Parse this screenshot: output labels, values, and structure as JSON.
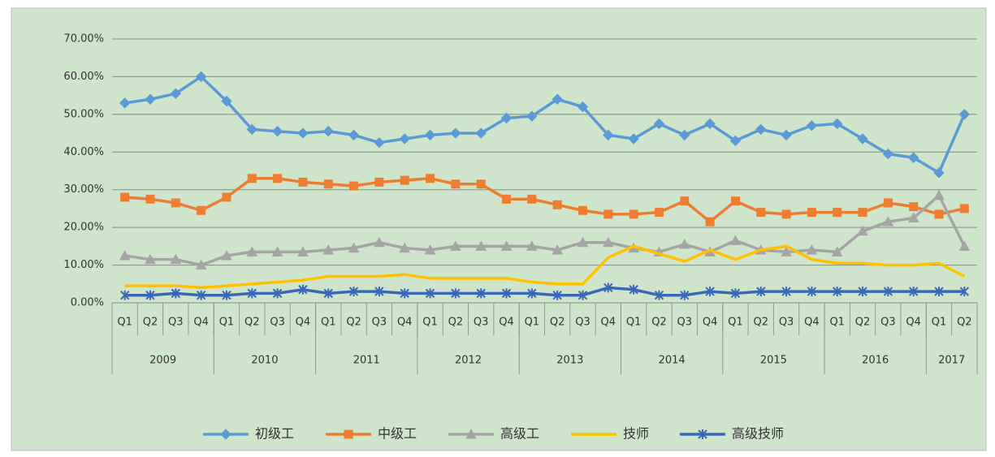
{
  "chart_data": {
    "type": "line",
    "groups": [
      {
        "label": "2009",
        "quarters": [
          "Q1",
          "Q2",
          "Q3",
          "Q4"
        ]
      },
      {
        "label": "2010",
        "quarters": [
          "Q1",
          "Q2",
          "Q3",
          "Q4"
        ]
      },
      {
        "label": "2011",
        "quarters": [
          "Q1",
          "Q2",
          "Q3",
          "Q4"
        ]
      },
      {
        "label": "2012",
        "quarters": [
          "Q1",
          "Q2",
          "Q3",
          "Q4"
        ]
      },
      {
        "label": "2013",
        "quarters": [
          "Q1",
          "Q2",
          "Q3",
          "Q4"
        ]
      },
      {
        "label": "2014",
        "quarters": [
          "Q1",
          "Q2",
          "Q3",
          "Q4"
        ]
      },
      {
        "label": "2015",
        "quarters": [
          "Q1",
          "Q2",
          "Q3",
          "Q4"
        ]
      },
      {
        "label": "2016",
        "quarters": [
          "Q1",
          "Q2",
          "Q3",
          "Q4"
        ]
      },
      {
        "label": "2017",
        "quarters": [
          "Q1",
          "Q2"
        ]
      }
    ],
    "series": [
      {
        "name": "初级工",
        "color": "#5b9bd5",
        "marker": "diamond",
        "values": [
          53,
          54,
          55.5,
          60,
          53.5,
          46,
          45.5,
          45,
          45.5,
          44.5,
          42.5,
          43.5,
          44.5,
          45,
          45,
          49,
          49.5,
          54,
          52,
          44.5,
          43.5,
          47.5,
          44.5,
          47.5,
          43,
          46,
          44.5,
          47,
          47.5,
          43.5,
          39.5,
          38.5,
          34.5,
          50
        ]
      },
      {
        "name": "中级工",
        "color": "#ed7d31",
        "marker": "square",
        "values": [
          28,
          27.5,
          26.5,
          24.5,
          28,
          33,
          33,
          32,
          31.5,
          31,
          32,
          32.5,
          33,
          31.5,
          31.5,
          27.5,
          27.5,
          26,
          24.5,
          23.5,
          23.5,
          24,
          27,
          21.5,
          27,
          24,
          23.5,
          24,
          24,
          24,
          26.5,
          25.5,
          23.5,
          25
        ]
      },
      {
        "name": "高级工",
        "color": "#a5a5a5",
        "marker": "triangle",
        "values": [
          12.5,
          11.5,
          11.5,
          10,
          12.5,
          13.5,
          13.5,
          13.5,
          14,
          14.5,
          16,
          14.5,
          14,
          15,
          15,
          15,
          15,
          14,
          16,
          16,
          14.5,
          13.5,
          15.5,
          13.5,
          16.5,
          14,
          13.5,
          14,
          13.5,
          19,
          21.5,
          22.5,
          28.5,
          15
        ]
      },
      {
        "name": "技师",
        "color": "#ffc000",
        "marker": "none",
        "values": [
          4.5,
          4.5,
          4.5,
          4,
          4.5,
          5,
          5.5,
          6,
          7,
          7,
          7,
          7.5,
          6.5,
          6.5,
          6.5,
          6.5,
          5.5,
          5,
          5,
          12,
          15,
          13,
          11,
          14,
          11.5,
          14,
          15,
          11.5,
          10.5,
          10.5,
          10,
          10,
          10.5,
          7
        ]
      },
      {
        "name": "高级技师",
        "color": "#3a68b8",
        "marker": "star",
        "values": [
          2,
          2,
          2.5,
          2,
          2,
          2.5,
          2.5,
          3.5,
          2.5,
          3,
          3,
          2.5,
          2.5,
          2.5,
          2.5,
          2.5,
          2.5,
          2,
          2,
          4,
          3.5,
          2,
          2,
          3,
          2.5,
          3,
          3,
          3,
          3,
          3,
          3,
          3,
          3,
          3
        ]
      }
    ],
    "ylim": [
      0,
      70
    ],
    "yticks": [
      {
        "value": 0,
        "label": "0.00%"
      },
      {
        "value": 10,
        "label": "10.00%"
      },
      {
        "value": 20,
        "label": "20.00%"
      },
      {
        "value": 30,
        "label": "30.00%"
      },
      {
        "value": 40,
        "label": "40.00%"
      },
      {
        "value": 50,
        "label": "50.00%"
      },
      {
        "value": 60,
        "label": "60.00%"
      },
      {
        "value": 70,
        "label": "70.00%"
      }
    ],
    "grid": true,
    "legend": "bottom",
    "background": "#cfe5cb"
  }
}
